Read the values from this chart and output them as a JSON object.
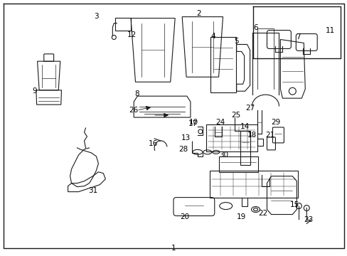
{
  "bg_color": "#ffffff",
  "border_color": "#1a1a1a",
  "line_color": "#1a1a1a",
  "fig_width": 4.89,
  "fig_height": 3.6,
  "dpi": 100
}
